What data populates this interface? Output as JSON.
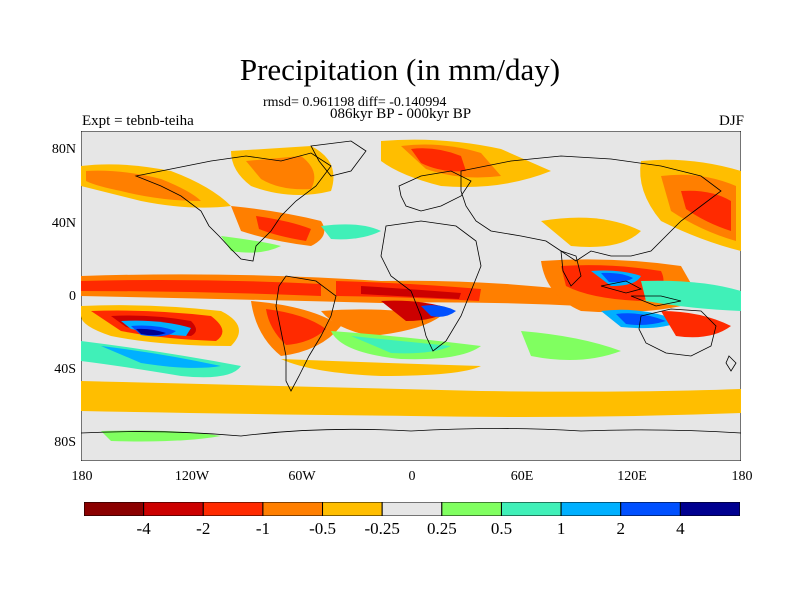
{
  "chart_data": {
    "type": "heatmap",
    "title": "Precipitation (in mm/day)",
    "stats_line": "rmsd= 0.961198 diff= -0.140994",
    "subtitle": "086kyr BP - 000kyr BP",
    "left_label": "Expt = tebnb-teiha",
    "right_label": "DJF",
    "x_ticks": [
      "180",
      "120W",
      "60W",
      "0",
      "60E",
      "120E",
      "180"
    ],
    "y_ticks": [
      "80N",
      "40N",
      "0",
      "40S",
      "80S"
    ],
    "colorbar": {
      "labels": [
        "-4",
        "-2",
        "-1",
        "-0.5",
        "-0.25",
        "0.25",
        "0.5",
        "1",
        "2",
        "4"
      ],
      "colors": [
        "#8b0000",
        "#cc0000",
        "#ff2a00",
        "#ff7f00",
        "#ffbe00",
        "#e6e6e6",
        "#80ff60",
        "#40f0b8",
        "#00b0ff",
        "#0050ff",
        "#000090"
      ]
    }
  }
}
